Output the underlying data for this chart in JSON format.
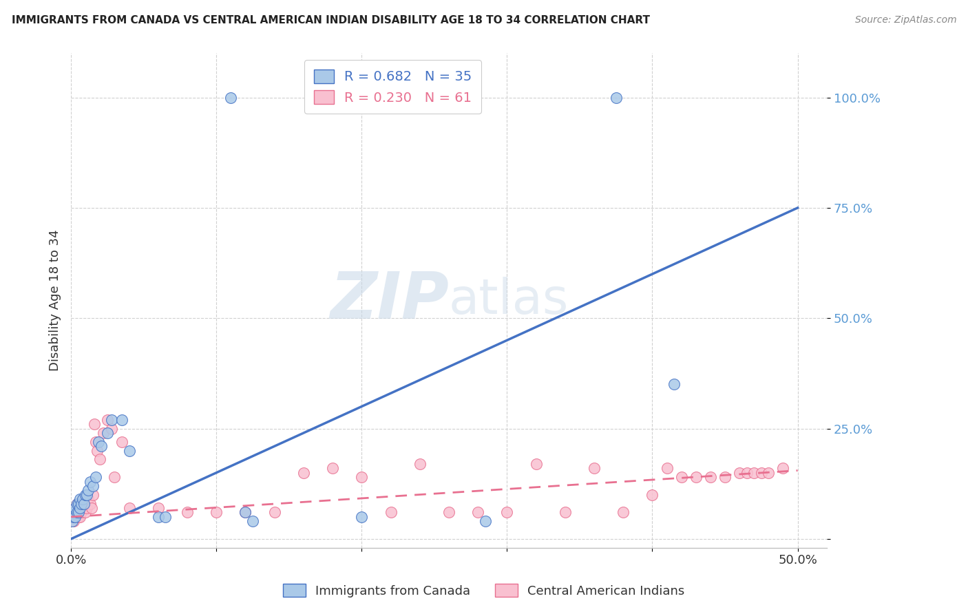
{
  "title": "IMMIGRANTS FROM CANADA VS CENTRAL AMERICAN INDIAN DISABILITY AGE 18 TO 34 CORRELATION CHART",
  "source": "Source: ZipAtlas.com",
  "ylabel": "Disability Age 18 to 34",
  "xlim": [
    0.0,
    0.52
  ],
  "ylim": [
    -0.02,
    1.1
  ],
  "xticks": [
    0.0,
    0.1,
    0.2,
    0.3,
    0.4,
    0.5
  ],
  "xtick_labels": [
    "0.0%",
    "",
    "",
    "",
    "",
    "50.0%"
  ],
  "ytick_positions": [
    0.0,
    0.25,
    0.5,
    0.75,
    1.0
  ],
  "ytick_labels": [
    "",
    "25.0%",
    "50.0%",
    "75.0%",
    "100.0%"
  ],
  "canada_color": "#aac9e8",
  "canada_color_line": "#4472c4",
  "central_color": "#f9c0d0",
  "central_color_line": "#e87090",
  "canada_R": 0.682,
  "canada_N": 35,
  "central_R": 0.23,
  "central_N": 61,
  "legend_label_canada": "Immigrants from Canada",
  "legend_label_central": "Central American Indians",
  "watermark_zip": "ZIP",
  "watermark_atlas": "atlas",
  "canada_x": [
    0.001,
    0.002,
    0.002,
    0.003,
    0.003,
    0.004,
    0.004,
    0.005,
    0.005,
    0.006,
    0.006,
    0.007,
    0.008,
    0.009,
    0.01,
    0.011,
    0.012,
    0.013,
    0.015,
    0.017,
    0.019,
    0.021,
    0.025,
    0.028,
    0.035,
    0.04,
    0.06,
    0.065,
    0.11,
    0.12,
    0.125,
    0.2,
    0.285,
    0.375,
    0.415
  ],
  "canada_y": [
    0.04,
    0.05,
    0.06,
    0.05,
    0.07,
    0.06,
    0.08,
    0.06,
    0.08,
    0.07,
    0.09,
    0.08,
    0.09,
    0.08,
    0.1,
    0.1,
    0.11,
    0.13,
    0.12,
    0.14,
    0.22,
    0.21,
    0.24,
    0.27,
    0.27,
    0.2,
    0.05,
    0.05,
    1.0,
    0.06,
    0.04,
    0.05,
    0.04,
    1.0,
    0.35
  ],
  "central_x": [
    0.001,
    0.002,
    0.002,
    0.003,
    0.003,
    0.004,
    0.004,
    0.005,
    0.005,
    0.006,
    0.006,
    0.007,
    0.007,
    0.008,
    0.008,
    0.009,
    0.01,
    0.011,
    0.012,
    0.013,
    0.014,
    0.015,
    0.016,
    0.017,
    0.018,
    0.02,
    0.022,
    0.025,
    0.028,
    0.03,
    0.035,
    0.04,
    0.06,
    0.08,
    0.1,
    0.12,
    0.14,
    0.16,
    0.18,
    0.2,
    0.22,
    0.24,
    0.26,
    0.28,
    0.3,
    0.32,
    0.34,
    0.36,
    0.38,
    0.4,
    0.41,
    0.42,
    0.43,
    0.44,
    0.45,
    0.46,
    0.465,
    0.47,
    0.475,
    0.48,
    0.49
  ],
  "central_y": [
    0.05,
    0.04,
    0.06,
    0.05,
    0.07,
    0.06,
    0.08,
    0.05,
    0.06,
    0.05,
    0.07,
    0.06,
    0.08,
    0.07,
    0.09,
    0.08,
    0.06,
    0.07,
    0.09,
    0.08,
    0.07,
    0.1,
    0.26,
    0.22,
    0.2,
    0.18,
    0.24,
    0.27,
    0.25,
    0.14,
    0.22,
    0.07,
    0.07,
    0.06,
    0.06,
    0.06,
    0.06,
    0.15,
    0.16,
    0.14,
    0.06,
    0.17,
    0.06,
    0.06,
    0.06,
    0.17,
    0.06,
    0.16,
    0.06,
    0.1,
    0.16,
    0.14,
    0.14,
    0.14,
    0.14,
    0.15,
    0.15,
    0.15,
    0.15,
    0.15,
    0.16
  ],
  "canada_line_x": [
    0.0,
    0.5
  ],
  "canada_line_y": [
    0.0,
    0.75
  ],
  "central_line_x": [
    0.0,
    0.5
  ],
  "central_line_y": [
    0.05,
    0.155
  ]
}
